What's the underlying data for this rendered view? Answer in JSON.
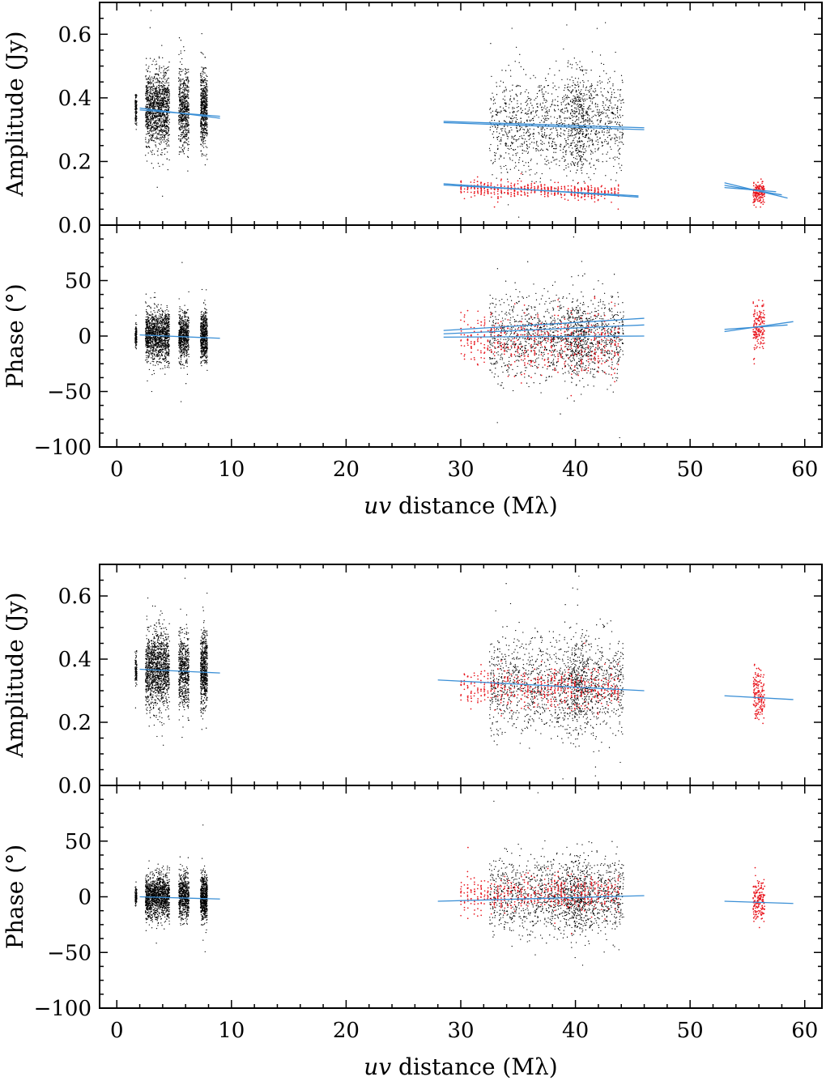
{
  "figure": {
    "name": "uv-plane visibility amplitude and phase versus uv distance",
    "colors": {
      "observed_points": "#000000",
      "highlighted_points": "#e8141c",
      "model_lines": "#3a8fd6",
      "axes": "#000000"
    }
  },
  "chart_data": [
    {
      "type": "scatter",
      "panel": "top-amplitude",
      "title": "",
      "xlabel": "",
      "ylabel": "Amplitude (Jy)",
      "xlim": [
        -1.5,
        61.5
      ],
      "ylim": [
        0.0,
        0.7
      ],
      "yticks": [
        0.0,
        0.2,
        0.4,
        0.6
      ],
      "ytick_labels": [
        "0.0",
        "0.2",
        "0.4",
        "0.6"
      ],
      "xticks": [
        0,
        10,
        20,
        30,
        40,
        50,
        60
      ],
      "point_groups": [
        {
          "name": "short-baselines",
          "color_key": "observed_points",
          "x": [
            1.6,
            7.9
          ],
          "center": 0.365,
          "spread": 0.06,
          "clusters": [
            [
              1.6,
              1.75,
              0.37,
              0.025
            ],
            [
              2.5,
              4.6,
              0.37,
              0.06
            ],
            [
              5.4,
              6.3,
              0.365,
              0.06
            ],
            [
              7.4,
              7.9,
              0.35,
              0.06
            ]
          ],
          "count": 2600
        },
        {
          "name": "long-baselines",
          "color_key": "observed_points",
          "x": [
            32.5,
            44.2
          ],
          "center": 0.32,
          "spread": 0.08,
          "count": 1600
        },
        {
          "name": "highlighted-mid",
          "color_key": "highlighted_points",
          "x": [
            30.0,
            44.0
          ],
          "center": 0.108,
          "spread": 0.012,
          "count": 500
        },
        {
          "name": "highlighted-far",
          "color_key": "highlighted_points",
          "x": [
            55.5,
            56.5
          ],
          "center": 0.1,
          "spread": 0.015,
          "count": 160
        }
      ],
      "model_lines": [
        {
          "x": [
            2.0,
            9.0
          ],
          "y": [
            0.368,
            0.336
          ]
        },
        {
          "x": [
            2.0,
            9.0
          ],
          "y": [
            0.362,
            0.342
          ]
        },
        {
          "x": [
            28.5,
            46.0
          ],
          "y": [
            0.326,
            0.306
          ]
        },
        {
          "x": [
            28.5,
            46.0
          ],
          "y": [
            0.322,
            0.3
          ]
        },
        {
          "x": [
            28.5,
            45.5
          ],
          "y": [
            0.13,
            0.088
          ]
        },
        {
          "x": [
            28.5,
            45.5
          ],
          "y": [
            0.126,
            0.092
          ]
        },
        {
          "x": [
            53.0,
            58.5
          ],
          "y": [
            0.133,
            0.085
          ]
        },
        {
          "x": [
            53.0,
            58.0
          ],
          "y": [
            0.125,
            0.095
          ]
        },
        {
          "x": [
            53.0,
            57.5
          ],
          "y": [
            0.118,
            0.105
          ]
        }
      ]
    },
    {
      "type": "scatter",
      "panel": "top-phase",
      "title": "",
      "xlabel": "uv distance (Mλ)",
      "ylabel": "Phase (°)",
      "xlim": [
        -1.5,
        61.5
      ],
      "ylim": [
        -100,
        100
      ],
      "yticks": [
        -100,
        -50,
        0,
        50
      ],
      "ytick_labels": [
        "−100",
        "−50",
        "0",
        "50"
      ],
      "xticks": [
        0,
        10,
        20,
        30,
        40,
        50,
        60
      ],
      "xtick_labels": [
        "0",
        "10",
        "20",
        "30",
        "40",
        "50",
        "60"
      ],
      "point_groups": [
        {
          "name": "short-baselines",
          "color_key": "observed_points",
          "x": [
            1.6,
            7.9
          ],
          "center": 0,
          "spread": 11,
          "count": 2600
        },
        {
          "name": "long-baselines",
          "color_key": "observed_points",
          "x": [
            32.5,
            44.2
          ],
          "center": 0,
          "spread": 18,
          "count": 1600
        },
        {
          "name": "highlighted-mid",
          "color_key": "highlighted_points",
          "x": [
            30.0,
            44.0
          ],
          "center": -5,
          "spread": 14,
          "count": 500
        },
        {
          "name": "highlighted-far",
          "color_key": "highlighted_points",
          "x": [
            55.5,
            56.5
          ],
          "center": 8,
          "spread": 12,
          "count": 160
        }
      ],
      "model_lines": [
        {
          "x": [
            2.0,
            9.0
          ],
          "y": [
            1,
            -2
          ]
        },
        {
          "x": [
            28.5,
            46.0
          ],
          "y": [
            5,
            16
          ]
        },
        {
          "x": [
            28.5,
            46.0
          ],
          "y": [
            2,
            10
          ]
        },
        {
          "x": [
            28.5,
            46.0
          ],
          "y": [
            -1,
            0
          ]
        },
        {
          "x": [
            53.0,
            59.0
          ],
          "y": [
            4,
            13
          ]
        },
        {
          "x": [
            53.0,
            58.5
          ],
          "y": [
            6,
            10
          ]
        }
      ]
    },
    {
      "type": "scatter",
      "panel": "bottom-amplitude",
      "title": "",
      "xlabel": "",
      "ylabel": "Amplitude (Jy)",
      "xlim": [
        -1.5,
        61.5
      ],
      "ylim": [
        0.0,
        0.7
      ],
      "yticks": [
        0.0,
        0.2,
        0.4,
        0.6
      ],
      "ytick_labels": [
        "0.0",
        "0.2",
        "0.4",
        "0.6"
      ],
      "xticks": [
        0,
        10,
        20,
        30,
        40,
        50,
        60
      ],
      "point_groups": [
        {
          "name": "short-baselines",
          "color_key": "observed_points",
          "x": [
            1.6,
            7.9
          ],
          "center": 0.365,
          "spread": 0.06,
          "count": 2600
        },
        {
          "name": "long-baselines",
          "color_key": "observed_points",
          "x": [
            32.5,
            44.2
          ],
          "center": 0.32,
          "spread": 0.08,
          "count": 1600
        },
        {
          "name": "highlighted-mid",
          "color_key": "highlighted_points",
          "x": [
            30.0,
            44.0
          ],
          "center": 0.31,
          "spread": 0.03,
          "count": 500
        },
        {
          "name": "highlighted-far",
          "color_key": "highlighted_points",
          "x": [
            55.5,
            56.5
          ],
          "center": 0.29,
          "spread": 0.04,
          "count": 160
        }
      ],
      "model_lines": [
        {
          "x": [
            2.0,
            9.0
          ],
          "y": [
            0.368,
            0.356
          ]
        },
        {
          "x": [
            28.0,
            46.0
          ],
          "y": [
            0.334,
            0.3
          ]
        },
        {
          "x": [
            53.0,
            59.0
          ],
          "y": [
            0.284,
            0.272
          ]
        }
      ]
    },
    {
      "type": "scatter",
      "panel": "bottom-phase",
      "title": "",
      "xlabel": "uv distance (Mλ)",
      "ylabel": "Phase (°)",
      "xlim": [
        -1.5,
        61.5
      ],
      "ylim": [
        -100,
        100
      ],
      "yticks": [
        -100,
        -50,
        0,
        50
      ],
      "ytick_labels": [
        "−100",
        "−50",
        "0",
        "50"
      ],
      "xticks": [
        0,
        10,
        20,
        30,
        40,
        50,
        60
      ],
      "xtick_labels": [
        "0",
        "10",
        "20",
        "30",
        "40",
        "50",
        "60"
      ],
      "point_groups": [
        {
          "name": "short-baselines",
          "color_key": "observed_points",
          "x": [
            1.6,
            7.9
          ],
          "center": 0,
          "spread": 10,
          "count": 2600
        },
        {
          "name": "long-baselines",
          "color_key": "observed_points",
          "x": [
            32.5,
            44.2
          ],
          "center": 0,
          "spread": 17,
          "count": 1600
        },
        {
          "name": "highlighted-mid",
          "color_key": "highlighted_points",
          "x": [
            30.0,
            44.0
          ],
          "center": 2,
          "spread": 8,
          "count": 500
        },
        {
          "name": "highlighted-far",
          "color_key": "highlighted_points",
          "x": [
            55.5,
            56.5
          ],
          "center": -5,
          "spread": 10,
          "count": 160
        }
      ],
      "model_lines": [
        {
          "x": [
            2.0,
            9.0
          ],
          "y": [
            0,
            -2
          ]
        },
        {
          "x": [
            28.0,
            46.0
          ],
          "y": [
            -4,
            1
          ]
        },
        {
          "x": [
            53.0,
            59.0
          ],
          "y": [
            -4,
            -6
          ]
        }
      ]
    }
  ]
}
